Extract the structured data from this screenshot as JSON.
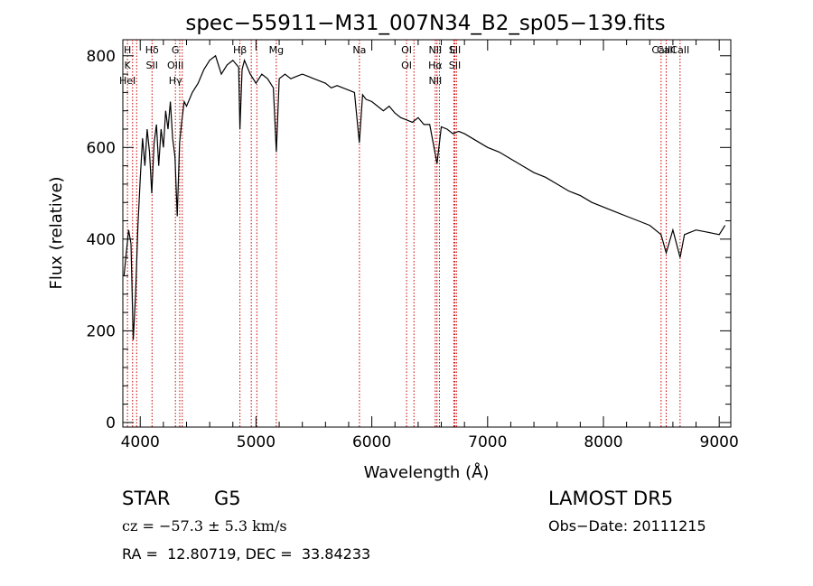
{
  "chart_data": {
    "type": "line",
    "title": "spec−55911−M31_007N34_B2_sp05−139.fits",
    "xlabel": "Wavelength (Å)",
    "ylabel": "Flux (relative)",
    "xlim": [
      3850,
      9100
    ],
    "ylim": [
      -10,
      835
    ],
    "x_ticks": [
      4000,
      5000,
      6000,
      7000,
      8000,
      9000
    ],
    "x_tick_labels": [
      "4000",
      "5000",
      "6000",
      "7000",
      "8000",
      "9000"
    ],
    "y_ticks": [
      0,
      200,
      400,
      600,
      800
    ],
    "y_tick_labels": [
      "0",
      "200",
      "400",
      "600",
      "800"
    ],
    "grid": false,
    "series": [
      {
        "color": "#000000",
        "x": [
          3860,
          3880,
          3900,
          3920,
          3940,
          3960,
          3980,
          4000,
          4020,
          4040,
          4060,
          4080,
          4100,
          4120,
          4140,
          4160,
          4180,
          4200,
          4220,
          4240,
          4260,
          4280,
          4300,
          4320,
          4340,
          4360,
          4380,
          4400,
          4450,
          4500,
          4550,
          4600,
          4650,
          4700,
          4750,
          4800,
          4850,
          4861,
          4880,
          4900,
          4950,
          5000,
          5050,
          5100,
          5150,
          5175,
          5200,
          5250,
          5300,
          5350,
          5400,
          5450,
          5500,
          5550,
          5600,
          5650,
          5700,
          5750,
          5800,
          5850,
          5892,
          5920,
          5950,
          6000,
          6050,
          6100,
          6150,
          6200,
          6250,
          6300,
          6350,
          6400,
          6450,
          6500,
          6563,
          6600,
          6650,
          6700,
          6750,
          6800,
          6900,
          7000,
          7100,
          7200,
          7300,
          7400,
          7500,
          7600,
          7700,
          7800,
          7900,
          8000,
          8100,
          8200,
          8300,
          8400,
          8498,
          8542,
          8600,
          8662,
          8700,
          8800,
          8900,
          9000,
          9050
        ],
        "y": [
          320,
          370,
          420,
          390,
          180,
          280,
          430,
          530,
          620,
          560,
          640,
          590,
          500,
          610,
          650,
          560,
          640,
          600,
          680,
          640,
          700,
          620,
          580,
          450,
          610,
          660,
          700,
          690,
          720,
          740,
          770,
          790,
          800,
          760,
          780,
          790,
          775,
          640,
          770,
          790,
          760,
          740,
          760,
          750,
          730,
          590,
          750,
          760,
          750,
          755,
          760,
          755,
          750,
          745,
          740,
          730,
          735,
          730,
          725,
          720,
          610,
          715,
          705,
          700,
          690,
          680,
          690,
          675,
          665,
          660,
          655,
          665,
          650,
          650,
          565,
          645,
          640,
          630,
          635,
          630,
          615,
          600,
          590,
          575,
          560,
          545,
          535,
          520,
          505,
          495,
          480,
          470,
          460,
          450,
          440,
          430,
          410,
          370,
          420,
          360,
          410,
          420,
          415,
          410,
          430
        ]
      }
    ],
    "lines": [
      {
        "wave": 3890,
        "labels": [
          "H",
          "K",
          "HeI"
        ]
      },
      {
        "wave": 3934,
        "labels": []
      },
      {
        "wave": 3969,
        "labels": []
      },
      {
        "wave": 4102,
        "labels": [
          "Hδ",
          "SII"
        ]
      },
      {
        "wave": 4304,
        "labels": [
          "G",
          "OIII",
          "Hγ"
        ]
      },
      {
        "wave": 4341,
        "labels": []
      },
      {
        "wave": 4363,
        "labels": []
      },
      {
        "wave": 4861,
        "labels": [
          "Hβ"
        ]
      },
      {
        "wave": 4959,
        "labels": []
      },
      {
        "wave": 5007,
        "labels": []
      },
      {
        "wave": 5175,
        "labels": [
          "Mg"
        ]
      },
      {
        "wave": 5893,
        "labels": [
          "Na"
        ]
      },
      {
        "wave": 6300,
        "labels": [
          "OI",
          "OI"
        ]
      },
      {
        "wave": 6364,
        "labels": []
      },
      {
        "wave": 6548,
        "labels": [
          "NII",
          "Hα",
          "NII"
        ]
      },
      {
        "wave": 6563,
        "labels": []
      },
      {
        "wave": 6584,
        "labels": []
      },
      {
        "wave": 6708,
        "labels": [
          "Li"
        ]
      },
      {
        "wave": 6717,
        "labels": [
          "SII",
          "SII"
        ]
      },
      {
        "wave": 6731,
        "labels": []
      },
      {
        "wave": 8498,
        "labels": [
          "CaII"
        ]
      },
      {
        "wave": 8542,
        "labels": [
          "CaII"
        ]
      },
      {
        "wave": 8662,
        "labels": [
          "CaII"
        ]
      }
    ],
    "line_color": "#cc0000"
  },
  "info": {
    "class": "STAR",
    "subclass": "G5",
    "survey": "LAMOST DR5",
    "cz": "cz = −57.3 ± 5.3 km/s",
    "obs_date": "Obs−Date: 20111215",
    "coords": "RA =  12.80719, DEC =  33.84233"
  }
}
